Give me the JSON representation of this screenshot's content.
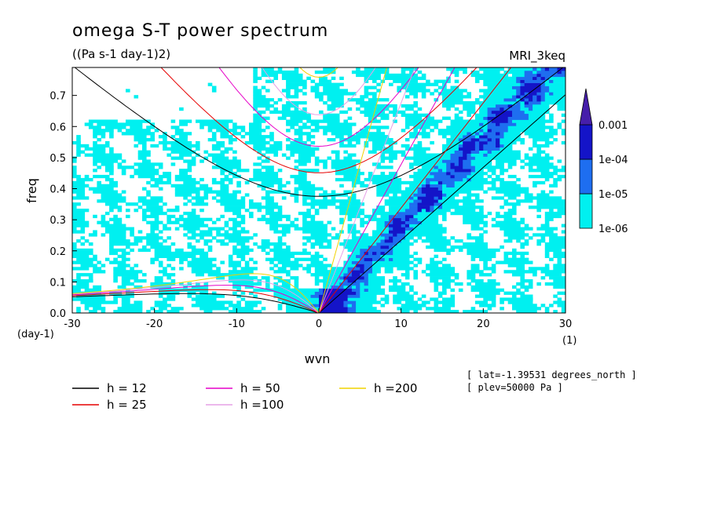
{
  "chart_data": {
    "type": "heatmap",
    "title": "omega S-T power spectrum",
    "subtitle": "((Pa s-1 day-1)2)",
    "model_label": "MRI_3keq",
    "xlabel": "wvn",
    "ylabel": "freq",
    "x_unit_label": "(1)",
    "y_unit_label": "(day-1)",
    "xlim": [
      -30,
      30
    ],
    "ylim": [
      0,
      0.79
    ],
    "xticks": [
      -30,
      -20,
      -10,
      0,
      10,
      20,
      30
    ],
    "xtick_labels": [
      "-30",
      "-20",
      "-10",
      "0",
      "10",
      "20",
      "30"
    ],
    "yticks": [
      0,
      0.1,
      0.2,
      0.3,
      0.4,
      0.5,
      0.6,
      0.7
    ],
    "ytick_labels": [
      "0.0",
      "0.1",
      "0.2",
      "0.3",
      "0.4",
      "0.5",
      "0.6",
      "0.7"
    ],
    "colorbar": {
      "levels": [
        1e-06,
        1e-05,
        0.0001,
        0.001
      ],
      "labels": [
        "1e-06",
        "1e-05",
        "1e-04",
        "0.001"
      ],
      "colors": [
        "#ffffff",
        "#00f0f0",
        "#1e6ef0",
        "#1414c8",
        "#461eaa"
      ]
    },
    "dispersion_curves": [
      {
        "name": "h = 12",
        "h": 12,
        "color": "#000000"
      },
      {
        "name": "h = 25",
        "h": 25,
        "color": "#e60000"
      },
      {
        "name": "h = 50",
        "h": 50,
        "color": "#e600c8"
      },
      {
        "name": "h =100",
        "h": 100,
        "color": "#e6a0e6"
      },
      {
        "name": "h =200",
        "h": 200,
        "color": "#f0d200"
      }
    ],
    "info": [
      "[ lat=-1.39531 degrees_north ]",
      "[ plev=50000 Pa ]"
    ]
  }
}
